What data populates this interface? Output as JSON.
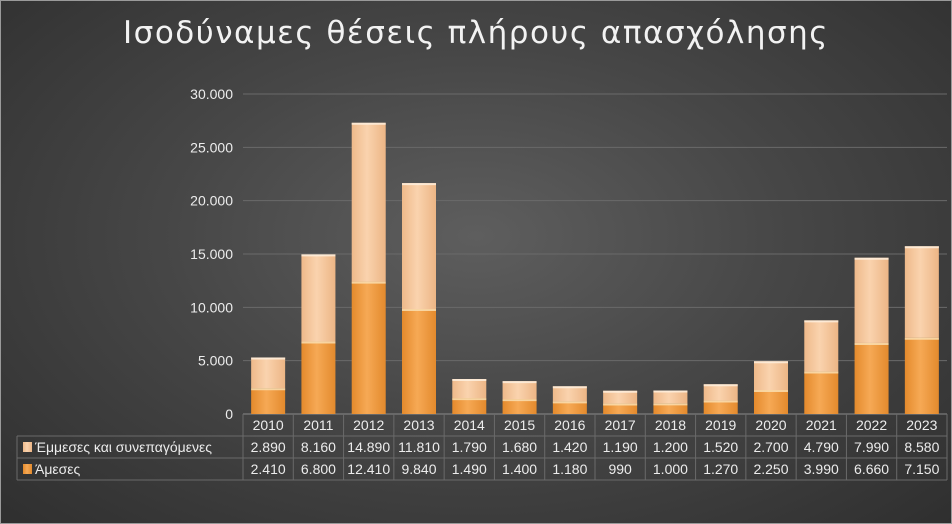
{
  "chart_data": {
    "type": "bar",
    "stacked": true,
    "title": "Ισοδύναμες θέσεις πλήρους απασχόλησης",
    "xlabel": "",
    "ylabel": "",
    "categories": [
      "2010",
      "2011",
      "2012",
      "2013",
      "2014",
      "2015",
      "2016",
      "2017",
      "2018",
      "2019",
      "2020",
      "2021",
      "2022",
      "2023"
    ],
    "series": [
      {
        "name": "Άμεσες",
        "values": [
          2410,
          6800,
          12410,
          9840,
          1490,
          1400,
          1180,
          990,
          1000,
          1270,
          2250,
          3990,
          6660,
          7150
        ],
        "value_labels": [
          "2.410",
          "6.800",
          "12.410",
          "9.840",
          "1.490",
          "1.400",
          "1.180",
          "990",
          "1.000",
          "1.270",
          "2.250",
          "3.990",
          "6.660",
          "7.150"
        ],
        "color": "#f0a04b"
      },
      {
        "name": "Έμμεσες και συνεπαγόμενες",
        "values": [
          2890,
          8160,
          14890,
          11810,
          1790,
          1680,
          1420,
          1190,
          1200,
          1520,
          2700,
          4790,
          7990,
          8580
        ],
        "value_labels": [
          "2.890",
          "8.160",
          "14.890",
          "11.810",
          "1.790",
          "1.680",
          "1.420",
          "1.190",
          "1.200",
          "1.520",
          "2.700",
          "4.790",
          "7.990",
          "8.580"
        ],
        "color": "#f7c79a"
      }
    ],
    "yticks": [
      "0",
      "5.000",
      "10.000",
      "15.000",
      "20.000",
      "25.000",
      "30.000"
    ],
    "ylim": [
      0,
      30000
    ],
    "grid": true,
    "legend": "data-table-below"
  }
}
